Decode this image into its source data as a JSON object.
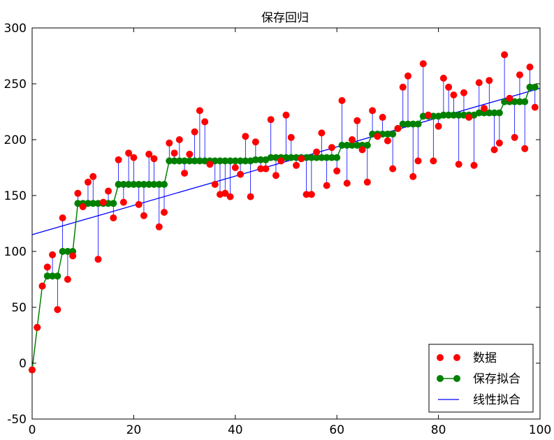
{
  "chart_data": {
    "type": "scatter",
    "title": "保存回归",
    "xlabel": "",
    "ylabel": "",
    "xlim": [
      0,
      100
    ],
    "ylim": [
      -50,
      300
    ],
    "xticks": [
      0,
      20,
      40,
      60,
      80,
      100
    ],
    "yticks": [
      -50,
      0,
      50,
      100,
      150,
      200,
      250,
      300
    ],
    "grid": false,
    "legend_position": "bottom-right",
    "series": [
      {
        "name": "数据",
        "type": "scatter",
        "color": "#ff0000",
        "x": [
          0,
          1,
          2,
          3,
          4,
          5,
          6,
          7,
          8,
          9,
          10,
          11,
          12,
          13,
          14,
          15,
          16,
          17,
          18,
          19,
          20,
          21,
          22,
          23,
          24,
          25,
          26,
          27,
          28,
          29,
          30,
          31,
          32,
          33,
          34,
          35,
          36,
          37,
          38,
          39,
          40,
          41,
          42,
          43,
          44,
          45,
          46,
          47,
          48,
          49,
          50,
          51,
          52,
          53,
          54,
          55,
          56,
          57,
          58,
          59,
          60,
          61,
          62,
          63,
          64,
          65,
          66,
          67,
          68,
          69,
          70,
          71,
          72,
          73,
          74,
          75,
          76,
          77,
          78,
          79,
          80,
          81,
          82,
          83,
          84,
          85,
          86,
          87,
          88,
          89,
          90,
          91,
          92,
          93,
          94,
          95,
          96,
          97,
          98,
          99
        ],
        "y": [
          -6,
          32,
          69,
          86,
          97,
          48,
          130,
          75,
          96,
          152,
          140,
          162,
          167,
          93,
          144,
          154,
          130,
          182,
          144,
          188,
          184,
          142,
          132,
          187,
          183,
          122,
          135,
          197,
          188,
          200,
          170,
          187,
          207,
          226,
          216,
          178,
          160,
          151,
          152,
          149,
          175,
          169,
          203,
          149,
          198,
          174,
          174,
          218,
          168,
          181,
          222,
          202,
          177,
          183,
          151,
          151,
          189,
          206,
          159,
          193,
          172,
          235,
          161,
          200,
          217,
          191,
          162,
          226,
          203,
          220,
          199,
          174,
          210,
          247,
          257,
          167,
          181,
          268,
          222,
          181,
          212,
          255,
          247,
          240,
          178,
          242,
          220,
          177,
          251,
          228,
          253,
          191,
          197,
          276,
          237,
          202,
          258,
          192,
          265,
          229
        ]
      },
      {
        "name": "保存拟合",
        "type": "step-line",
        "color": "#008000",
        "x": [
          0,
          1,
          2,
          3,
          4,
          5,
          6,
          7,
          8,
          9,
          10,
          11,
          12,
          13,
          14,
          15,
          16,
          17,
          18,
          19,
          20,
          21,
          22,
          23,
          24,
          25,
          26,
          27,
          28,
          29,
          30,
          31,
          32,
          33,
          34,
          35,
          36,
          37,
          38,
          39,
          40,
          41,
          42,
          43,
          44,
          45,
          46,
          47,
          48,
          49,
          50,
          51,
          52,
          53,
          54,
          55,
          56,
          57,
          58,
          59,
          60,
          61,
          62,
          63,
          64,
          65,
          66,
          67,
          68,
          69,
          70,
          71,
          72,
          73,
          74,
          75,
          76,
          77,
          78,
          79,
          80,
          81,
          82,
          83,
          84,
          85,
          86,
          87,
          88,
          89,
          90,
          91,
          92,
          93,
          94,
          95,
          96,
          97,
          98,
          99
        ],
        "y": [
          -6,
          32,
          69,
          78,
          78,
          78,
          100,
          100,
          100,
          143,
          143,
          143,
          143,
          143,
          143,
          143,
          143,
          160,
          160,
          160,
          160,
          160,
          160,
          160,
          160,
          160,
          160,
          181,
          181,
          181,
          181,
          181,
          181,
          181,
          181,
          181,
          181,
          181,
          181,
          181,
          181,
          181,
          181,
          181,
          182,
          182,
          182,
          184,
          184,
          184,
          184,
          184,
          184,
          184,
          184,
          184,
          184,
          184,
          184,
          184,
          184,
          195,
          195,
          195,
          195,
          195,
          195,
          205,
          205,
          205,
          205,
          205,
          210,
          214,
          214,
          214,
          214,
          221,
          221,
          221,
          221,
          222,
          222,
          222,
          222,
          222,
          222,
          222,
          224,
          224,
          224,
          224,
          224,
          234,
          234,
          234,
          234,
          234,
          247,
          247
        ]
      },
      {
        "name": "线性拟合",
        "type": "line",
        "color": "#0000ff",
        "x": [
          0,
          100
        ],
        "y": [
          115,
          246
        ]
      }
    ]
  }
}
